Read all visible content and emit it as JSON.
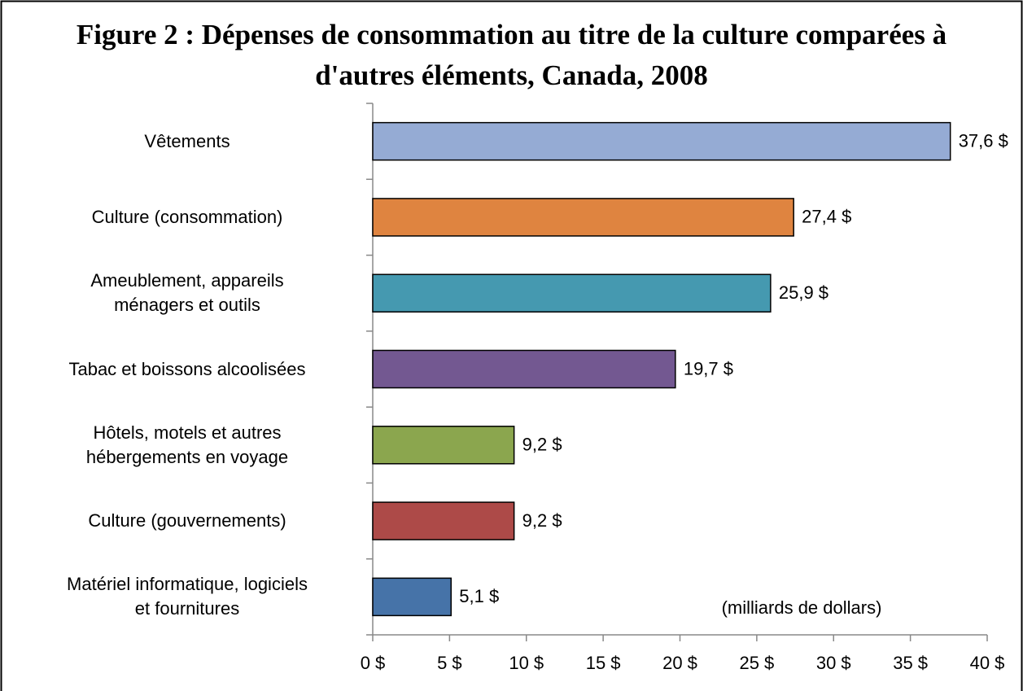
{
  "chart_data": {
    "type": "barh",
    "title": "Figure 2 : Dépenses de consommation au titre de la culture comparées à d'autres éléments, Canada, 2008",
    "annotation": "(milliards de dollars)",
    "categories": [
      "Vêtements",
      "Culture (consommation)",
      "Ameublement, appareils\nménagers et outils",
      "Tabac et boissons alcoolisées",
      "Hôtels, motels et autres\nhébergements en voyage",
      "Culture (gouvernements)",
      "Matériel informatique, logiciels\net fournitures"
    ],
    "values": [
      37.6,
      27.4,
      25.9,
      19.7,
      9.2,
      9.2,
      5.1
    ],
    "value_labels": [
      "37,6 $",
      "27,4 $",
      "25,9 $",
      "19,7 $",
      "9,2 $",
      "9,2 $",
      "5,1 $"
    ],
    "colors": [
      "#95abd4",
      "#df8440",
      "#4599b0",
      "#735891",
      "#8ba64e",
      "#ad4a48",
      "#4673a8"
    ],
    "xlim": [
      0,
      40
    ],
    "xticks": [
      {
        "value": 0,
        "label": "0 $"
      },
      {
        "value": 5,
        "label": "5 $"
      },
      {
        "value": 10,
        "label": "10 $"
      },
      {
        "value": 15,
        "label": "15 $"
      },
      {
        "value": 20,
        "label": "20 $"
      },
      {
        "value": 25,
        "label": "25 $"
      },
      {
        "value": 30,
        "label": "30 $"
      },
      {
        "value": 35,
        "label": "35 $"
      },
      {
        "value": 40,
        "label": "40 $"
      }
    ],
    "grid": false
  }
}
